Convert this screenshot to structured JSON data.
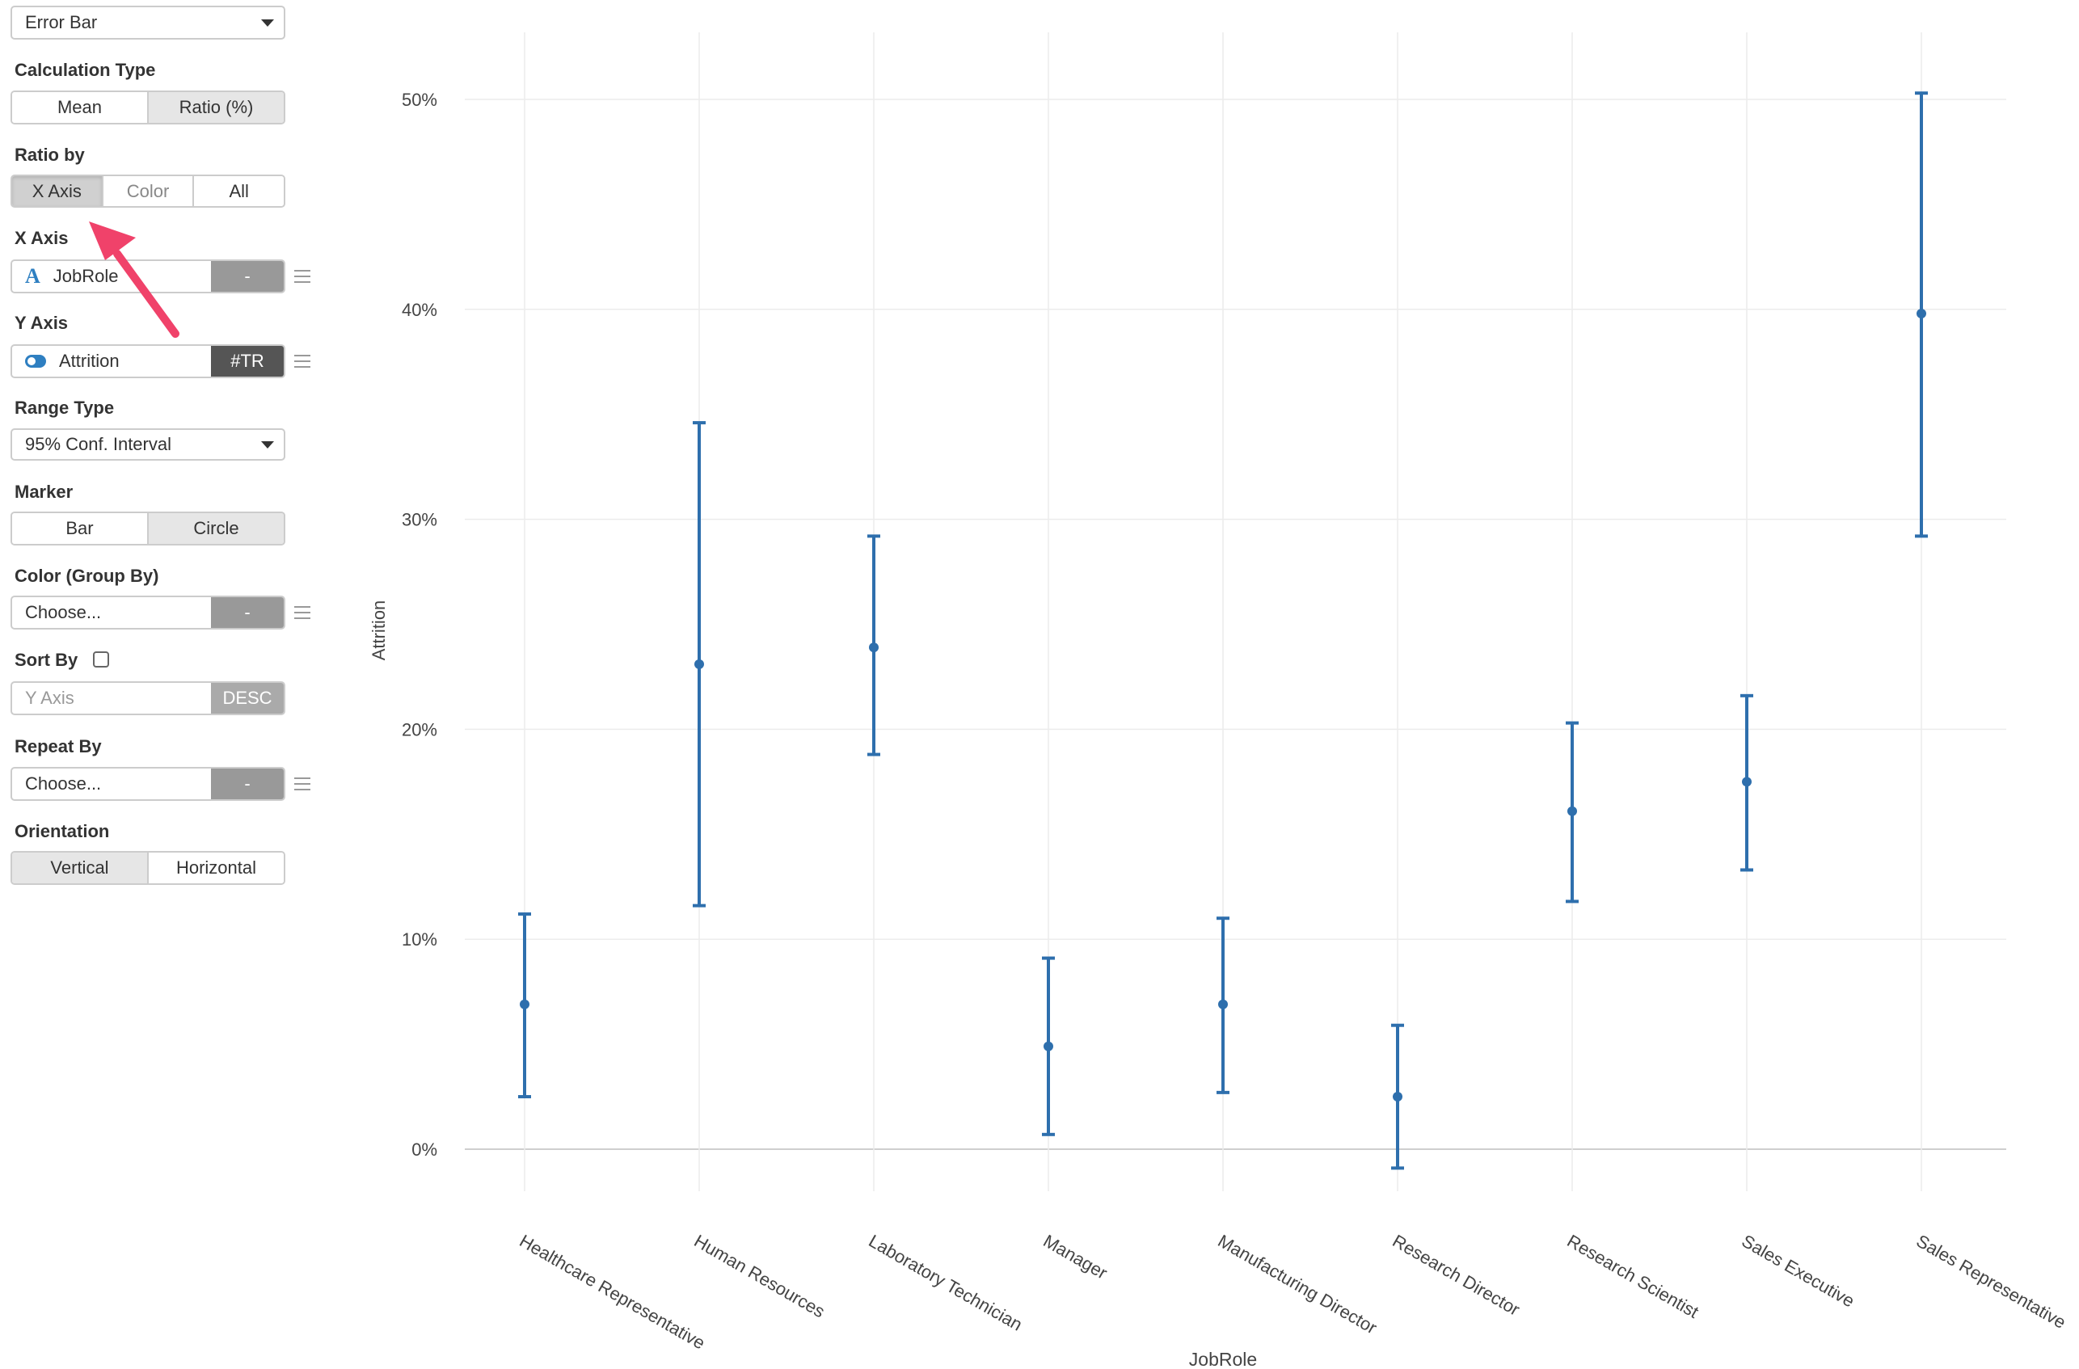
{
  "sidebar": {
    "chart_type": "Error Bar",
    "calculation_type": {
      "label": "Calculation Type",
      "options": [
        "Mean",
        "Ratio (%)"
      ],
      "selected": "Ratio (%)"
    },
    "ratio_by": {
      "label": "Ratio by",
      "options": [
        "X Axis",
        "Color",
        "All"
      ],
      "selected": "X Axis"
    },
    "x_axis": {
      "label": "X Axis",
      "column": "JobRole",
      "tag": "-"
    },
    "y_axis": {
      "label": "Y Axis",
      "column": "Attrition",
      "tag": "#TR"
    },
    "range_type": {
      "label": "Range Type",
      "value": "95% Conf. Interval"
    },
    "marker": {
      "label": "Marker",
      "options": [
        "Bar",
        "Circle"
      ],
      "selected": "Circle"
    },
    "color_group_by": {
      "label": "Color (Group By)",
      "value": "Choose...",
      "tag": "-"
    },
    "sort_by": {
      "label": "Sort By",
      "field_placeholder": "Y Axis",
      "order": "DESC",
      "checked": false
    },
    "repeat_by": {
      "label": "Repeat By",
      "value": "Choose...",
      "tag": "-"
    },
    "orientation": {
      "label": "Orientation",
      "options": [
        "Vertical",
        "Horizontal"
      ],
      "selected": "Vertical"
    }
  },
  "chart_data": {
    "type": "errorbar",
    "xlabel": "JobRole",
    "ylabel": "Attrition",
    "ylim": [
      -1.5,
      53
    ],
    "y_ticks": [
      0,
      10,
      20,
      30,
      40,
      50
    ],
    "y_tick_labels": [
      "0%",
      "10%",
      "20%",
      "30%",
      "40%",
      "50%"
    ],
    "categories": [
      "Healthcare Representative",
      "Human Resources",
      "Laboratory Technician",
      "Manager",
      "Manufacturing Director",
      "Research Director",
      "Research Scientist",
      "Sales Executive",
      "Sales Representative"
    ],
    "values": [
      6.9,
      23.1,
      23.9,
      4.9,
      6.9,
      2.5,
      16.1,
      17.5,
      39.8
    ],
    "lower": [
      2.5,
      11.6,
      18.8,
      0.7,
      2.7,
      -0.9,
      11.8,
      13.3,
      29.2
    ],
    "upper": [
      11.2,
      34.6,
      29.2,
      9.1,
      11.0,
      5.9,
      20.3,
      21.6,
      50.3
    ],
    "series_color": "#2e6fad",
    "grid": true
  }
}
